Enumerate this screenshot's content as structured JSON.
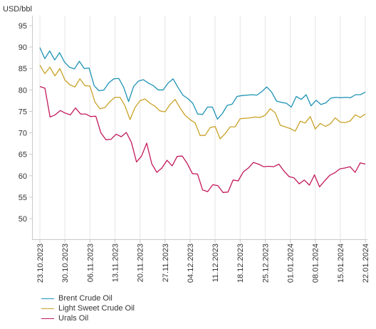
{
  "chart_data": {
    "type": "line",
    "ylabel": "USD/bbl",
    "xlabel": "",
    "ylim": [
      45,
      95
    ],
    "y_ticks": [
      95,
      90,
      85,
      80,
      75,
      70,
      65,
      60,
      55,
      50
    ],
    "grid": "vertical lines at date ticks; horizontal gridlines not drawn",
    "legend_placement": "bottom-left",
    "x_ticks": [
      "23.10.2023",
      "30.10.2023",
      "06.11.2023",
      "13.11.2023",
      "20.11.2023",
      "27.11.2023",
      "04.12.2023",
      "11.12.2023",
      "18.12.2023",
      "25.12.2023",
      "01.01.2024",
      "08.01.2024",
      "15.01.2024",
      "22.01.2024"
    ],
    "series": [
      {
        "name": "Brent Crude Oil",
        "color": "#1e93b5",
        "values": [
          89.9,
          87.3,
          89.1,
          87.0,
          88.7,
          86.5,
          85.3,
          84.9,
          86.7,
          85.0,
          85.1,
          81.0,
          79.8,
          80.0,
          81.7,
          82.6,
          82.7,
          80.6,
          77.3,
          80.8,
          82.1,
          82.4,
          81.6,
          81.0,
          80.0,
          80.0,
          81.6,
          82.6,
          80.6,
          78.8,
          78.0,
          76.9,
          74.4,
          74.3,
          76.0,
          76.0,
          73.2,
          74.5,
          76.4,
          76.7,
          78.5,
          78.7,
          78.8,
          78.9,
          78.8,
          79.6,
          80.7,
          79.5,
          77.4,
          77.1,
          76.9,
          76.0,
          78.5,
          77.8,
          78.9,
          76.3,
          77.6,
          76.6,
          77.0,
          78.1,
          78.3,
          78.2,
          78.3,
          78.2,
          78.9,
          78.9,
          79.5
        ]
      },
      {
        "name": "Light Sweet Crude Oil",
        "color": "#c9a227",
        "values": [
          85.8,
          83.8,
          85.3,
          83.3,
          85.0,
          82.3,
          81.2,
          80.7,
          82.6,
          81.0,
          80.9,
          77.2,
          75.6,
          75.9,
          77.3,
          78.3,
          78.3,
          76.3,
          73.1,
          75.9,
          77.5,
          77.9,
          76.9,
          76.2,
          75.1,
          74.9,
          76.6,
          77.8,
          75.8,
          74.1,
          73.1,
          72.3,
          69.4,
          69.4,
          71.2,
          71.5,
          68.6,
          69.8,
          71.4,
          71.4,
          73.3,
          73.4,
          73.5,
          73.7,
          73.6,
          74.1,
          75.6,
          74.7,
          71.8,
          71.4,
          71.0,
          70.4,
          72.7,
          72.3,
          73.8,
          70.9,
          72.2,
          71.5,
          72.1,
          73.5,
          72.5,
          72.4,
          72.8,
          74.2,
          73.6,
          74.4
        ]
      },
      {
        "name": "Urals Oil",
        "color": "#c2185b",
        "values": [
          80.8,
          80.4,
          73.7,
          74.2,
          75.2,
          74.6,
          74.2,
          75.8,
          74.4,
          74.4,
          73.8,
          73.9,
          70.0,
          68.4,
          68.5,
          69.7,
          69.1,
          70.1,
          67.8,
          63.2,
          64.6,
          67.6,
          62.8,
          60.8,
          61.8,
          63.6,
          62.3,
          64.5,
          64.6,
          62.8,
          60.5,
          60.4,
          56.7,
          56.3,
          57.9,
          57.7,
          56.1,
          56.2,
          59.0,
          58.8,
          60.9,
          61.8,
          63.1,
          62.7,
          62.1,
          62.2,
          62.1,
          62.7,
          61.1,
          59.8,
          59.5,
          58.1,
          59.0,
          57.8,
          60.2,
          57.4,
          58.8,
          60.1,
          60.7,
          61.6,
          61.8,
          62.1,
          60.8,
          63.0,
          62.7
        ]
      }
    ]
  }
}
